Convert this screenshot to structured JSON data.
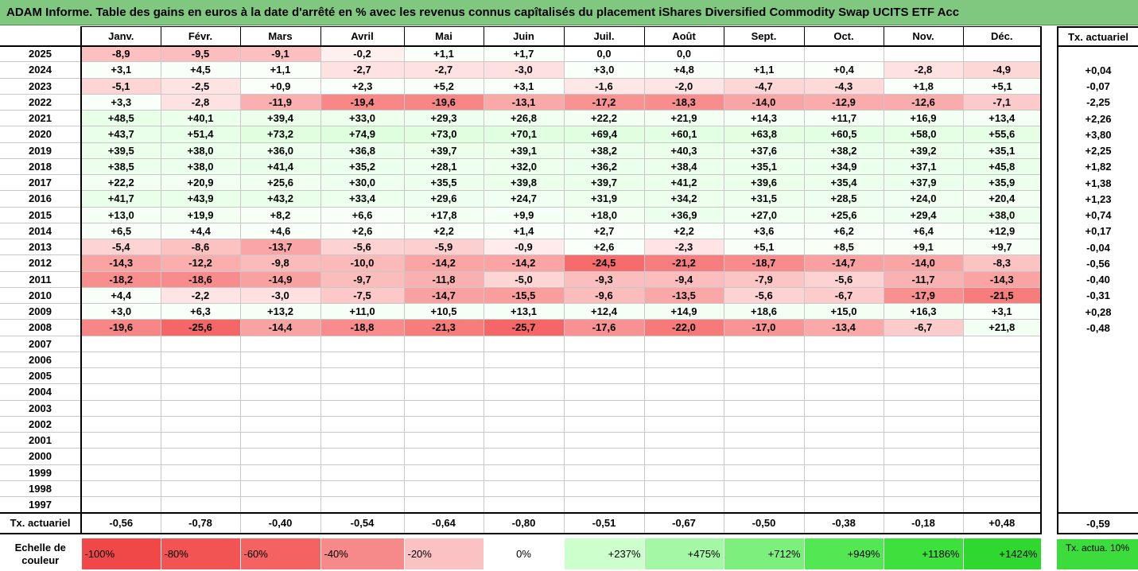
{
  "title": "ADAM Informe. Table des gains en euros à la date d'arrêté en % avec les revenus connus capîtalisés du placement iShares Diversified Commodity Swap UCITS ETF Acc",
  "months": [
    "Janv.",
    "Févr.",
    "Mars",
    "Avril",
    "Mai",
    "Juin",
    "Juil.",
    "Août",
    "Sept.",
    "Oct.",
    "Nov.",
    "Déc."
  ],
  "side_header": "Tx. actuariel",
  "rows": [
    {
      "year": "2025",
      "values": [
        "-8,9",
        "-9,5",
        "-9,1",
        "-0,2",
        "+1,1",
        "+1,7",
        "0,0",
        "0,0",
        "",
        "",
        "",
        ""
      ],
      "rate": ""
    },
    {
      "year": "2024",
      "values": [
        "+3,1",
        "+4,5",
        "+1,1",
        "-2,7",
        "-2,7",
        "-3,0",
        "+3,0",
        "+4,8",
        "+1,1",
        "+0,4",
        "-2,8",
        "-4,9"
      ],
      "rate": "+0,04"
    },
    {
      "year": "2023",
      "values": [
        "-5,1",
        "-2,5",
        "+0,9",
        "+2,3",
        "+5,2",
        "+3,1",
        "-1,6",
        "-2,0",
        "-4,7",
        "-4,3",
        "+1,8",
        "+5,1"
      ],
      "rate": "-0,07"
    },
    {
      "year": "2022",
      "values": [
        "+3,3",
        "-2,8",
        "-11,9",
        "-19,4",
        "-19,6",
        "-13,1",
        "-17,2",
        "-18,3",
        "-14,0",
        "-12,9",
        "-12,6",
        "-7,1"
      ],
      "rate": "-2,25"
    },
    {
      "year": "2021",
      "values": [
        "+48,5",
        "+40,1",
        "+39,4",
        "+33,0",
        "+29,3",
        "+26,8",
        "+22,2",
        "+21,9",
        "+14,3",
        "+11,7",
        "+16,9",
        "+13,4"
      ],
      "rate": "+2,26"
    },
    {
      "year": "2020",
      "values": [
        "+43,7",
        "+51,4",
        "+73,2",
        "+74,9",
        "+73,0",
        "+70,1",
        "+69,4",
        "+60,1",
        "+63,8",
        "+60,5",
        "+58,0",
        "+55,6"
      ],
      "rate": "+3,80"
    },
    {
      "year": "2019",
      "values": [
        "+39,5",
        "+38,0",
        "+36,0",
        "+36,8",
        "+39,7",
        "+39,1",
        "+38,2",
        "+40,3",
        "+37,6",
        "+38,2",
        "+39,2",
        "+35,1"
      ],
      "rate": "+2,25"
    },
    {
      "year": "2018",
      "values": [
        "+38,5",
        "+38,0",
        "+41,4",
        "+35,2",
        "+28,1",
        "+32,0",
        "+36,2",
        "+38,4",
        "+35,1",
        "+34,9",
        "+37,1",
        "+45,8"
      ],
      "rate": "+1,82"
    },
    {
      "year": "2017",
      "values": [
        "+22,2",
        "+20,9",
        "+25,6",
        "+30,0",
        "+35,5",
        "+39,8",
        "+39,7",
        "+41,2",
        "+39,6",
        "+35,4",
        "+37,9",
        "+35,9"
      ],
      "rate": "+1,38"
    },
    {
      "year": "2016",
      "values": [
        "+41,7",
        "+43,9",
        "+43,2",
        "+33,4",
        "+29,6",
        "+24,7",
        "+31,9",
        "+34,2",
        "+31,5",
        "+28,5",
        "+24,0",
        "+20,4"
      ],
      "rate": "+1,23"
    },
    {
      "year": "2015",
      "values": [
        "+13,0",
        "+19,9",
        "+8,2",
        "+6,6",
        "+17,8",
        "+9,9",
        "+18,0",
        "+36,9",
        "+27,0",
        "+25,6",
        "+29,4",
        "+38,0"
      ],
      "rate": "+0,74"
    },
    {
      "year": "2014",
      "values": [
        "+6,5",
        "+4,4",
        "+4,6",
        "+2,6",
        "+2,2",
        "+1,4",
        "+2,7",
        "+2,2",
        "+3,6",
        "+6,2",
        "+6,4",
        "+12,9"
      ],
      "rate": "+0,17"
    },
    {
      "year": "2013",
      "values": [
        "-5,4",
        "-8,6",
        "-13,7",
        "-5,6",
        "-5,9",
        "-0,9",
        "+2,6",
        "-2,3",
        "+5,1",
        "+8,5",
        "+9,1",
        "+9,7"
      ],
      "rate": "-0,04"
    },
    {
      "year": "2012",
      "values": [
        "-14,3",
        "-12,2",
        "-9,8",
        "-10,0",
        "-14,2",
        "-14,2",
        "-24,5",
        "-21,2",
        "-18,7",
        "-14,7",
        "-14,0",
        "-8,3"
      ],
      "rate": "-0,56"
    },
    {
      "year": "2011",
      "values": [
        "-18,2",
        "-18,6",
        "-14,9",
        "-9,7",
        "-11,8",
        "-5,0",
        "-9,3",
        "-9,4",
        "-7,9",
        "-5,6",
        "-11,7",
        "-14,3"
      ],
      "rate": "-0,40"
    },
    {
      "year": "2010",
      "values": [
        "+4,4",
        "-2,2",
        "-3,0",
        "-7,5",
        "-14,7",
        "-15,5",
        "-9,6",
        "-13,5",
        "-5,6",
        "-6,7",
        "-17,9",
        "-21,5"
      ],
      "rate": "-0,31"
    },
    {
      "year": "2009",
      "values": [
        "+3,0",
        "+6,3",
        "+13,2",
        "+11,0",
        "+10,5",
        "+13,1",
        "+12,4",
        "+14,9",
        "+18,6",
        "+15,0",
        "+16,3",
        "+3,1"
      ],
      "rate": "+0,28"
    },
    {
      "year": "2008",
      "values": [
        "-19,6",
        "-25,6",
        "-14,4",
        "-18,8",
        "-21,3",
        "-25,7",
        "-17,6",
        "-22,0",
        "-17,0",
        "-13,4",
        "-6,7",
        "+21,8"
      ],
      "rate": "-0,48"
    },
    {
      "year": "2007",
      "values": [
        "",
        "",
        "",
        "",
        "",
        "",
        "",
        "",
        "",
        "",
        "",
        ""
      ],
      "rate": ""
    },
    {
      "year": "2006",
      "values": [
        "",
        "",
        "",
        "",
        "",
        "",
        "",
        "",
        "",
        "",
        "",
        ""
      ],
      "rate": ""
    },
    {
      "year": "2005",
      "values": [
        "",
        "",
        "",
        "",
        "",
        "",
        "",
        "",
        "",
        "",
        "",
        ""
      ],
      "rate": ""
    },
    {
      "year": "2004",
      "values": [
        "",
        "",
        "",
        "",
        "",
        "",
        "",
        "",
        "",
        "",
        "",
        ""
      ],
      "rate": ""
    },
    {
      "year": "2003",
      "values": [
        "",
        "",
        "",
        "",
        "",
        "",
        "",
        "",
        "",
        "",
        "",
        ""
      ],
      "rate": ""
    },
    {
      "year": "2002",
      "values": [
        "",
        "",
        "",
        "",
        "",
        "",
        "",
        "",
        "",
        "",
        "",
        ""
      ],
      "rate": ""
    },
    {
      "year": "2001",
      "values": [
        "",
        "",
        "",
        "",
        "",
        "",
        "",
        "",
        "",
        "",
        "",
        ""
      ],
      "rate": ""
    },
    {
      "year": "2000",
      "values": [
        "",
        "",
        "",
        "",
        "",
        "",
        "",
        "",
        "",
        "",
        "",
        ""
      ],
      "rate": ""
    },
    {
      "year": "1999",
      "values": [
        "",
        "",
        "",
        "",
        "",
        "",
        "",
        "",
        "",
        "",
        "",
        ""
      ],
      "rate": ""
    },
    {
      "year": "1998",
      "values": [
        "",
        "",
        "",
        "",
        "",
        "",
        "",
        "",
        "",
        "",
        "",
        ""
      ],
      "rate": ""
    },
    {
      "year": "1997",
      "values": [
        "",
        "",
        "",
        "",
        "",
        "",
        "",
        "",
        "",
        "",
        "",
        ""
      ],
      "rate": ""
    }
  ],
  "footer": {
    "label": "Tx. actuariel",
    "values": [
      "-0,56",
      "-0,78",
      "-0,40",
      "-0,54",
      "-0,64",
      "-0,80",
      "-0,51",
      "-0,67",
      "-0,50",
      "-0,38",
      "-0,18",
      "+0,48"
    ],
    "overall": "-0,59"
  },
  "legend": {
    "label": "Echelle de couleur",
    "steps": [
      {
        "text": "-100%",
        "color": "#f04848"
      },
      {
        "text": "-80%",
        "color": "#f25454"
      },
      {
        "text": "-60%",
        "color": "#f46262"
      },
      {
        "text": "-40%",
        "color": "#f68a8a"
      },
      {
        "text": "-20%",
        "color": "#fac2c2"
      },
      {
        "text": "0%",
        "color": "#ffffff"
      },
      {
        "text": "+237%",
        "color": "#ccffcc"
      },
      {
        "text": "+475%",
        "color": "#a4f7a4"
      },
      {
        "text": "+712%",
        "color": "#7cef7c"
      },
      {
        "text": "+949%",
        "color": "#54e754"
      },
      {
        "text": "+1186%",
        "color": "#3de03d"
      },
      {
        "text": "+1424%",
        "color": "#2fd82f"
      }
    ],
    "right_label": "Tx. actua. 10%",
    "right_color": "#3ddc3d"
  },
  "colors": {
    "title_bg": "#80c880",
    "neg_light": "#fff0f0",
    "neg_strong": "#f46a6a",
    "pos_light": "#f5fff5",
    "pos_mid": "#e8fbe8"
  }
}
